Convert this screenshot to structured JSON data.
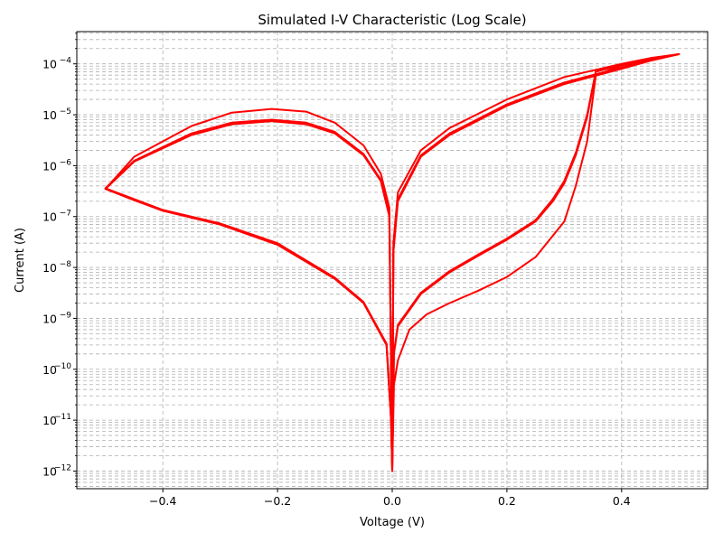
{
  "chart_data": {
    "type": "line",
    "title": "Simulated I-V Characteristic (Log Scale)",
    "xlabel": "Voltage (V)",
    "ylabel": "Current (A)",
    "xlim": [
      -0.55,
      0.55
    ],
    "ylim": [
      4.5e-13,
      0.00043
    ],
    "yscale": "log",
    "grid": "on (major and minor, dashed gray)",
    "x_ticks": [
      -0.4,
      -0.2,
      0.0,
      0.2,
      0.4
    ],
    "x_tick_labels": [
      "−0.4",
      "−0.2",
      "0.0",
      "0.2",
      "0.4"
    ],
    "y_ticks": [
      1e-12,
      1e-11,
      1e-10,
      1e-09,
      1e-08,
      1e-07,
      1e-06,
      1e-05,
      0.0001
    ],
    "y_tick_exponents": [
      "−12",
      "−11",
      "−10",
      "−9",
      "−8",
      "−7",
      "−6",
      "−5",
      "−4"
    ],
    "y_tick_base": "10",
    "color": "#ff0000",
    "series": [
      {
        "values": [
          [
            0.0,
            1e-12
          ],
          [
            0.003,
            2e-10
          ],
          [
            0.01,
            7e-10
          ],
          [
            0.05,
            3e-09
          ],
          [
            0.1,
            8e-09
          ],
          [
            0.15,
            1.7e-08
          ],
          [
            0.2,
            3.5e-08
          ],
          [
            0.25,
            8e-08
          ],
          [
            0.28,
            2e-07
          ],
          [
            0.3,
            4.5e-07
          ],
          [
            0.32,
            1.6e-06
          ],
          [
            0.34,
            9e-06
          ],
          [
            0.355,
            7e-05
          ],
          [
            0.4,
            9.5e-05
          ],
          [
            0.45,
            0.000125
          ],
          [
            0.5,
            0.000155
          ],
          [
            0.45,
            0.000115
          ],
          [
            0.4,
            8e-05
          ],
          [
            0.3,
            4e-05
          ],
          [
            0.2,
            1.5e-05
          ],
          [
            0.1,
            4e-06
          ],
          [
            0.05,
            1.5e-06
          ],
          [
            0.01,
            2e-07
          ],
          [
            0.002,
            2e-08
          ],
          [
            0.0,
            1e-12
          ],
          [
            -0.002,
            1e-11
          ],
          [
            -0.01,
            3e-10
          ],
          [
            -0.05,
            2e-09
          ],
          [
            -0.1,
            6e-09
          ],
          [
            -0.2,
            2.8e-08
          ],
          [
            -0.3,
            7e-08
          ],
          [
            -0.4,
            1.3e-07
          ],
          [
            -0.45,
            2.1e-07
          ],
          [
            -0.5,
            3.5e-07
          ],
          [
            -0.45,
            1.2e-06
          ],
          [
            -0.35,
            4e-06
          ],
          [
            -0.28,
            6.5e-06
          ],
          [
            -0.21,
            7.5e-06
          ],
          [
            -0.15,
            6.5e-06
          ],
          [
            -0.1,
            4.3e-06
          ],
          [
            -0.05,
            1.6e-06
          ],
          [
            -0.02,
            5e-07
          ],
          [
            -0.005,
            1e-07
          ],
          [
            0.0,
            1e-12
          ]
        ]
      },
      {
        "values": [
          [
            0.0,
            1e-12
          ],
          [
            0.003,
            5e-11
          ],
          [
            0.01,
            1.5e-10
          ],
          [
            0.03,
            6e-10
          ],
          [
            0.06,
            1.2e-09
          ],
          [
            0.1,
            2e-09
          ],
          [
            0.15,
            3.5e-09
          ],
          [
            0.2,
            6.5e-09
          ],
          [
            0.25,
            1.6e-08
          ],
          [
            0.3,
            8e-08
          ],
          [
            0.32,
            4e-07
          ],
          [
            0.34,
            3e-06
          ],
          [
            0.355,
            6e-05
          ],
          [
            0.4,
            9.3e-05
          ],
          [
            0.45,
            0.000122
          ],
          [
            0.5,
            0.000155
          ],
          [
            0.45,
            0.00013
          ],
          [
            0.4,
            0.0001
          ],
          [
            0.3,
            5.5e-05
          ],
          [
            0.2,
            2e-05
          ],
          [
            0.1,
            5.5e-06
          ],
          [
            0.05,
            2e-06
          ],
          [
            0.01,
            3e-07
          ],
          [
            0.002,
            3e-08
          ],
          [
            0.0,
            1e-12
          ],
          [
            -0.002,
            1e-11
          ],
          [
            -0.01,
            3e-10
          ],
          [
            -0.05,
            2e-09
          ],
          [
            -0.1,
            6e-09
          ],
          [
            -0.2,
            2.8e-08
          ],
          [
            -0.3,
            7e-08
          ],
          [
            -0.4,
            1.3e-07
          ],
          [
            -0.45,
            2.1e-07
          ],
          [
            -0.5,
            3.5e-07
          ],
          [
            -0.45,
            1.5e-06
          ],
          [
            -0.35,
            6e-06
          ],
          [
            -0.28,
            1.1e-05
          ],
          [
            -0.21,
            1.3e-05
          ],
          [
            -0.15,
            1.15e-05
          ],
          [
            -0.1,
            7e-06
          ],
          [
            -0.05,
            2.5e-06
          ],
          [
            -0.02,
            7e-07
          ],
          [
            -0.005,
            1.5e-07
          ],
          [
            0.0,
            1e-12
          ]
        ]
      },
      {
        "values": [
          [
            0.0,
            1e-12
          ],
          [
            0.003,
            2.2e-10
          ],
          [
            0.01,
            7.5e-10
          ],
          [
            0.05,
            3.2e-09
          ],
          [
            0.1,
            8.5e-09
          ],
          [
            0.15,
            1.8e-08
          ],
          [
            0.2,
            3.7e-08
          ],
          [
            0.25,
            8.5e-08
          ],
          [
            0.28,
            2.2e-07
          ],
          [
            0.3,
            5e-07
          ],
          [
            0.32,
            1.8e-06
          ],
          [
            0.34,
            1e-05
          ],
          [
            0.355,
            7.2e-05
          ],
          [
            0.4,
            9.6e-05
          ],
          [
            0.45,
            0.000126
          ],
          [
            0.5,
            0.000156
          ],
          [
            0.45,
            0.00012
          ],
          [
            0.4,
            8.5e-05
          ],
          [
            0.3,
            4.3e-05
          ],
          [
            0.2,
            1.6e-05
          ],
          [
            0.1,
            4.3e-06
          ],
          [
            0.05,
            1.6e-06
          ],
          [
            0.01,
            2.2e-07
          ],
          [
            0.002,
            2.2e-08
          ],
          [
            0.0,
            1e-12
          ],
          [
            -0.002,
            1.2e-11
          ],
          [
            -0.01,
            3.2e-10
          ],
          [
            -0.05,
            2.1e-09
          ],
          [
            -0.1,
            6.3e-09
          ],
          [
            -0.2,
            3e-08
          ],
          [
            -0.3,
            7.3e-08
          ],
          [
            -0.4,
            1.35e-07
          ],
          [
            -0.45,
            2.2e-07
          ],
          [
            -0.5,
            3.6e-07
          ],
          [
            -0.45,
            1.25e-06
          ],
          [
            -0.35,
            4.3e-06
          ],
          [
            -0.28,
            7e-06
          ],
          [
            -0.21,
            8e-06
          ],
          [
            -0.15,
            7e-06
          ],
          [
            -0.1,
            4.6e-06
          ],
          [
            -0.05,
            1.7e-06
          ],
          [
            -0.02,
            5.3e-07
          ],
          [
            -0.005,
            1.1e-07
          ],
          [
            0.0,
            1e-12
          ]
        ]
      }
    ]
  }
}
